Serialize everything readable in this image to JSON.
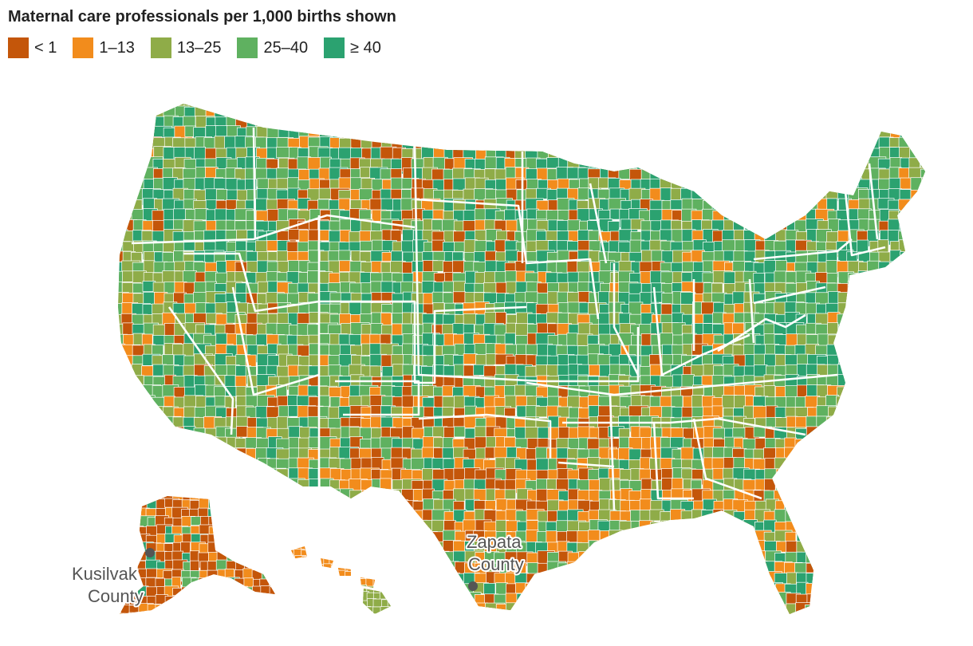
{
  "title": "Maternal care professionals per 1,000 births shown",
  "legend": [
    {
      "label": "< 1",
      "color": "#c4560a"
    },
    {
      "label": "1–13",
      "color": "#f28c1c"
    },
    {
      "label": "13–25",
      "color": "#8fac48"
    },
    {
      "label": "25–40",
      "color": "#5fb160"
    },
    {
      "label": "≥ 40",
      "color": "#2ba270"
    }
  ],
  "annotations": [
    {
      "id": "kusilvak",
      "line1": "Kusilvak",
      "line2": "County"
    },
    {
      "id": "zapata",
      "line1": "Zapata",
      "line2": "County"
    }
  ],
  "colors": {
    "state_border": "#ffffff",
    "county_border": "#ffffff",
    "marker": "#555555"
  }
}
